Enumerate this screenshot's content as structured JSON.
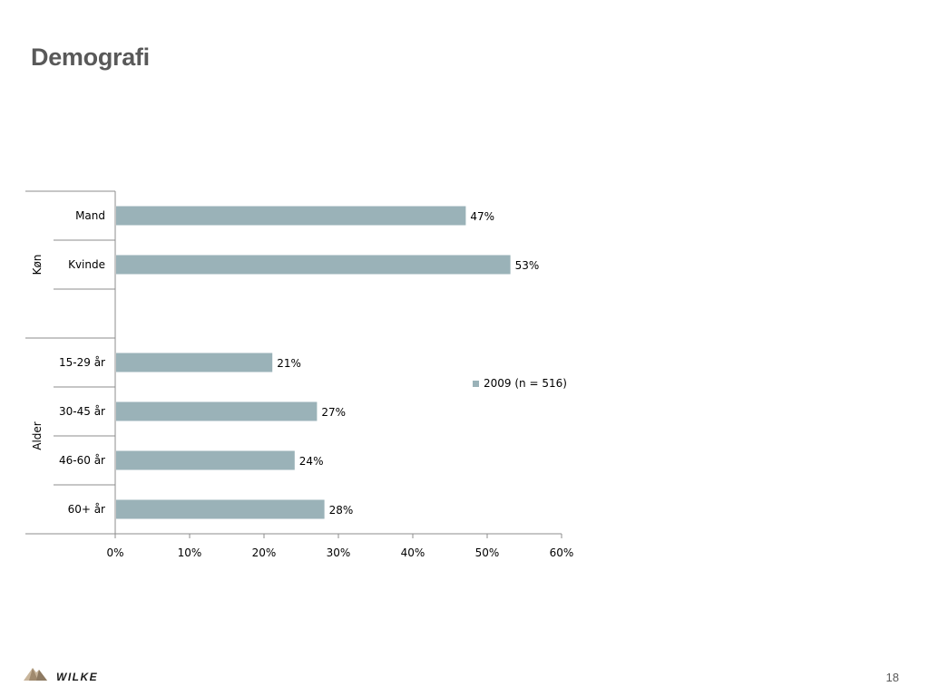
{
  "slide": {
    "title": "Demografi",
    "page_number": "18",
    "logo_text": "WILKE"
  },
  "colors": {
    "bar": "#9AB2B8",
    "axis": "#8c8c8c",
    "title": "#595959",
    "logo_mountain": "#b9a48a"
  },
  "chart_data": {
    "type": "bar",
    "orientation": "horizontal",
    "title": "",
    "xlabel": "",
    "ylabel": "",
    "xlim": [
      0,
      60
    ],
    "x_ticks": [
      "0%",
      "10%",
      "20%",
      "30%",
      "40%",
      "50%",
      "60%"
    ],
    "grid": false,
    "legend_position": "right",
    "groups": [
      {
        "label": "Køn",
        "categories": [
          "Mand",
          "Kvinde"
        ]
      },
      {
        "label": "Alder",
        "categories": [
          "15-29 år",
          "30-45 år",
          "46-60 år",
          "60+ år"
        ]
      }
    ],
    "categories": [
      "Mand",
      "Kvinde",
      "15-29 år",
      "30-45 år",
      "46-60 år",
      "60+ år"
    ],
    "series": [
      {
        "name": "2009 (n = 516)",
        "values": [
          47,
          53,
          21,
          27,
          24,
          28
        ],
        "labels": [
          "47%",
          "53%",
          "21%",
          "27%",
          "24%",
          "28%"
        ]
      }
    ]
  }
}
